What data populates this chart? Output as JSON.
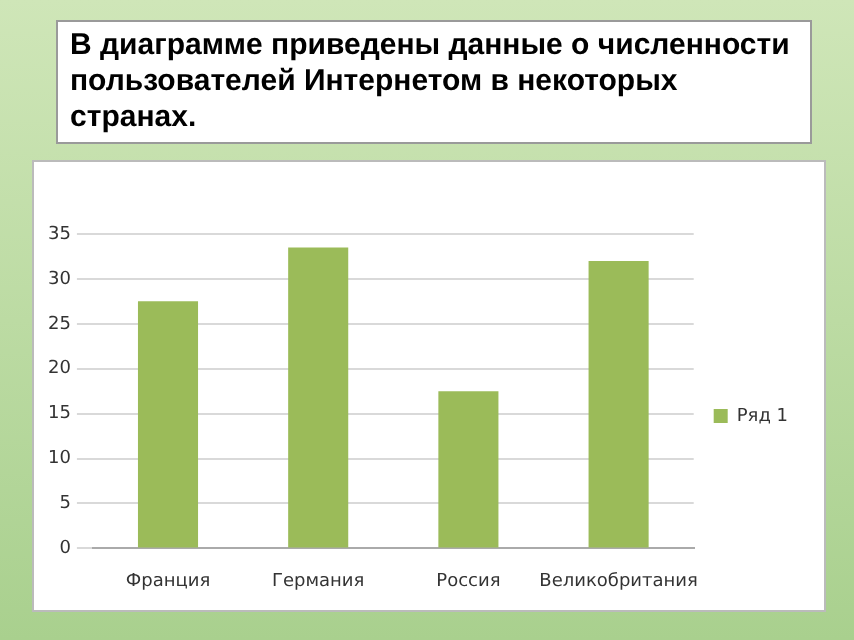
{
  "chart_data": {
    "type": "bar",
    "title": "В диаграмме приведены данные о численности пользователей Интернетом в некоторых странах.",
    "categories": [
      "Франция",
      "Германия",
      "Россия",
      "Великобритания"
    ],
    "series": [
      {
        "name": "Ряд 1",
        "color": "#9bbb59",
        "values": [
          27.5,
          33.5,
          17.5,
          32
        ]
      }
    ],
    "ylim": [
      0,
      35
    ],
    "yticks": [
      0,
      5,
      10,
      15,
      20,
      25,
      30,
      35
    ],
    "grid": "y",
    "legend": "right"
  }
}
